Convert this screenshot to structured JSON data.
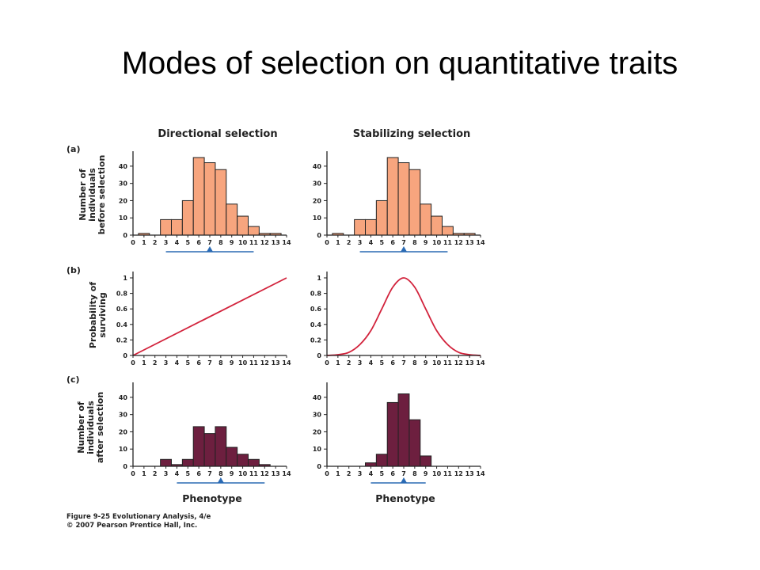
{
  "title": "Modes of selection on quantitative traits",
  "column_titles": [
    "Directional selection",
    "Stabilizing selection"
  ],
  "row_labels": [
    "(a)",
    "(b)",
    "(c)"
  ],
  "y_labels": [
    [
      "Number of",
      "individuals",
      "before selection"
    ],
    [
      "Probability of",
      "surviving"
    ],
    [
      "Number of",
      "individuals",
      "after selection"
    ]
  ],
  "x_label": "Phenotype",
  "caption": [
    "Figure 9-25 Evolutionary Analysis, 4/e",
    "© 2007 Pearson Prentice Hall, Inc."
  ],
  "colors": {
    "before_bars": "#f7a57e",
    "after_bars": "#6d1f3f",
    "survival_curve": "#d2233c",
    "mean_marker": "#2a6ab4"
  },
  "chart_data": [
    {
      "type": "bar",
      "panel": "a-directional",
      "x": [
        1,
        2,
        3,
        4,
        5,
        6,
        7,
        8,
        9,
        10,
        11,
        12,
        13
      ],
      "values": [
        1,
        0,
        9,
        9,
        20,
        45,
        42,
        38,
        18,
        11,
        5,
        1,
        1
      ],
      "xticks": [
        "0",
        "1",
        "2",
        "3",
        "4",
        "5",
        "6",
        "7",
        "8",
        "9",
        "10",
        "11",
        "12",
        "13",
        "14"
      ],
      "yticks": [
        "0",
        "10",
        "20",
        "30",
        "40"
      ],
      "ylim": [
        0,
        45
      ],
      "xlim": [
        0,
        14
      ],
      "mean_range": [
        3,
        11
      ],
      "mean": 7
    },
    {
      "type": "bar",
      "panel": "a-stabilizing",
      "x": [
        1,
        2,
        3,
        4,
        5,
        6,
        7,
        8,
        9,
        10,
        11,
        12,
        13
      ],
      "values": [
        1,
        0,
        9,
        9,
        20,
        45,
        42,
        38,
        18,
        11,
        5,
        1,
        1
      ],
      "xticks": [
        "0",
        "1",
        "2",
        "3",
        "4",
        "5",
        "6",
        "7",
        "8",
        "9",
        "10",
        "11",
        "12",
        "13",
        "14"
      ],
      "yticks": [
        "0",
        "10",
        "20",
        "30",
        "40"
      ],
      "ylim": [
        0,
        45
      ],
      "xlim": [
        0,
        14
      ],
      "mean_range": [
        3,
        11
      ],
      "mean": 7
    },
    {
      "type": "line",
      "panel": "b-directional",
      "x": [
        0,
        14
      ],
      "y": [
        0,
        1
      ],
      "xticks": [
        "0",
        "1",
        "2",
        "3",
        "4",
        "5",
        "6",
        "7",
        "8",
        "9",
        "10",
        "11",
        "12",
        "13",
        "14"
      ],
      "yticks": [
        "0",
        "0.2",
        "0.4",
        "0.6",
        "0.8",
        "1"
      ],
      "ylim": [
        0,
        1
      ],
      "xlim": [
        0,
        14
      ]
    },
    {
      "type": "line",
      "panel": "b-stabilizing",
      "x": [
        0,
        1,
        2,
        3,
        4,
        5,
        6,
        7,
        8,
        9,
        10,
        11,
        12,
        13,
        14
      ],
      "y": [
        0.0,
        0.01,
        0.04,
        0.14,
        0.32,
        0.6,
        0.88,
        1.0,
        0.88,
        0.6,
        0.32,
        0.14,
        0.04,
        0.01,
        0.0
      ],
      "xticks": [
        "0",
        "1",
        "2",
        "3",
        "4",
        "5",
        "6",
        "7",
        "8",
        "9",
        "10",
        "11",
        "12",
        "13",
        "14"
      ],
      "yticks": [
        "0",
        "0.2",
        "0.4",
        "0.6",
        "0.8",
        "1"
      ],
      "ylim": [
        0,
        1
      ],
      "xlim": [
        0,
        14
      ]
    },
    {
      "type": "bar",
      "panel": "c-directional",
      "x": [
        3,
        4,
        5,
        6,
        7,
        8,
        9,
        10,
        11,
        12
      ],
      "values": [
        4,
        1,
        4,
        23,
        19,
        23,
        11,
        7,
        4,
        1
      ],
      "xticks": [
        "0",
        "1",
        "2",
        "3",
        "4",
        "5",
        "6",
        "7",
        "8",
        "9",
        "10",
        "11",
        "12",
        "13",
        "14"
      ],
      "yticks": [
        "0",
        "10",
        "20",
        "30",
        "40"
      ],
      "ylim": [
        0,
        45
      ],
      "xlim": [
        0,
        14
      ],
      "mean_range": [
        4,
        12
      ],
      "mean": 8
    },
    {
      "type": "bar",
      "panel": "c-stabilizing",
      "x": [
        4,
        5,
        6,
        7,
        8,
        9
      ],
      "values": [
        2,
        7,
        37,
        42,
        27,
        6
      ],
      "xticks": [
        "0",
        "1",
        "2",
        "3",
        "4",
        "5",
        "6",
        "7",
        "8",
        "9",
        "10",
        "11",
        "12",
        "13",
        "14"
      ],
      "yticks": [
        "0",
        "10",
        "20",
        "30",
        "40"
      ],
      "ylim": [
        0,
        45
      ],
      "xlim": [
        0,
        14
      ],
      "mean_range": [
        4,
        9
      ],
      "mean": 7
    }
  ]
}
